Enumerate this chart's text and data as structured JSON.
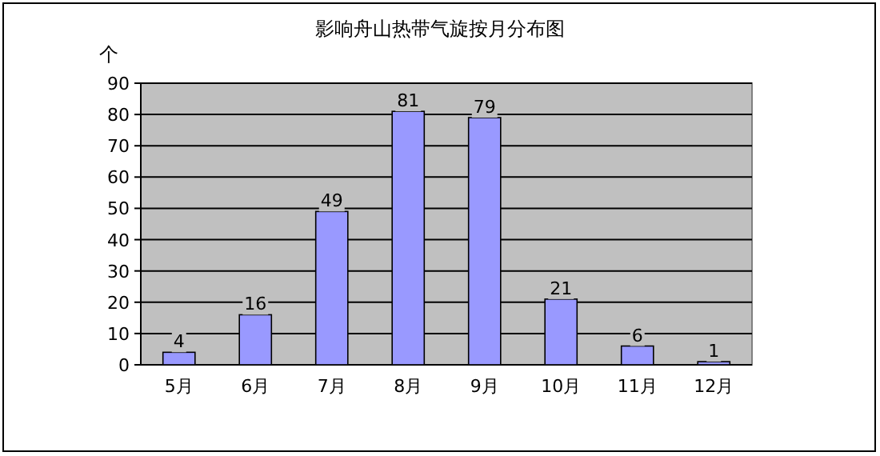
{
  "chart_data": {
    "type": "bar",
    "title": "影响舟山热带气旋按月分布图",
    "ylabel": "个",
    "categories": [
      "5月",
      "6月",
      "7月",
      "8月",
      "9月",
      "10月",
      "11月",
      "12月"
    ],
    "values": [
      4,
      16,
      49,
      81,
      79,
      21,
      6,
      1
    ],
    "color": "#9999ff",
    "ylim": [
      0,
      90
    ],
    "yticks": [
      0,
      10,
      20,
      30,
      40,
      50,
      60,
      70,
      80,
      90
    ],
    "grid": "y",
    "data_labels": true
  }
}
